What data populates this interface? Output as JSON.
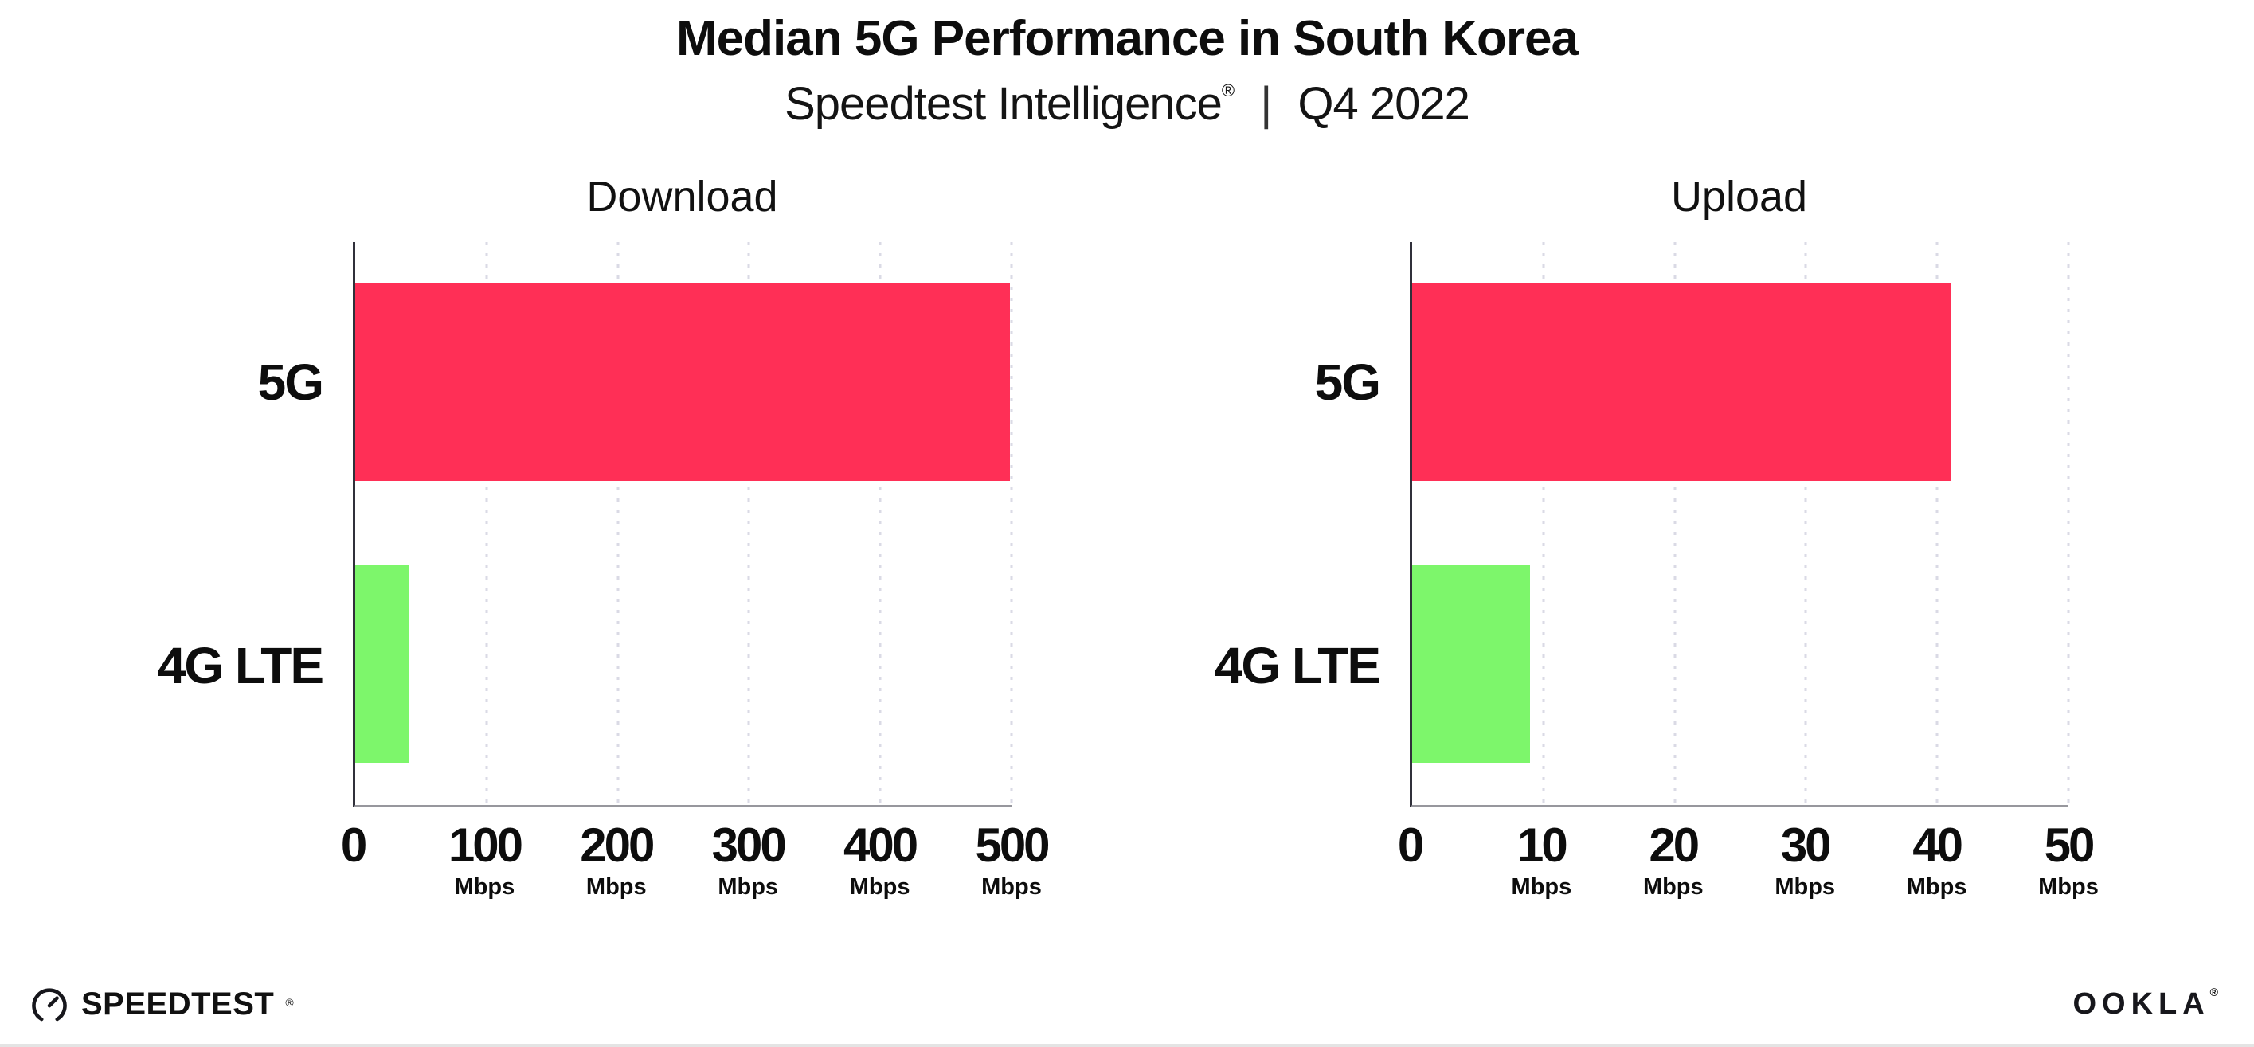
{
  "header": {
    "title": "Median 5G Performance in South Korea",
    "subtitle": {
      "brand": "Speedtest Intelligence",
      "reg": "®",
      "sep": "|",
      "period": "Q4 2022"
    }
  },
  "chart_data": [
    {
      "type": "bar",
      "orientation": "horizontal",
      "title": "Download",
      "categories": [
        "5G",
        "4G LTE"
      ],
      "values": [
        499,
        41
      ],
      "unit": "Mbps",
      "xlim": [
        0,
        500
      ],
      "xticks": [
        0,
        100,
        200,
        300,
        400,
        500
      ],
      "series_colors": [
        "#ff2f56",
        "#7df66b"
      ],
      "grid": "vertical-dotted",
      "legend": "none"
    },
    {
      "type": "bar",
      "orientation": "horizontal",
      "title": "Upload",
      "categories": [
        "5G",
        "4G LTE"
      ],
      "values": [
        41,
        9
      ],
      "unit": "Mbps",
      "xlim": [
        0,
        50
      ],
      "xticks": [
        0,
        10,
        20,
        30,
        40,
        50
      ],
      "series_colors": [
        "#ff2f56",
        "#7df66b"
      ],
      "grid": "vertical-dotted",
      "legend": "none"
    }
  ],
  "footer": {
    "speedtest": {
      "label": "SPEEDTEST",
      "reg": "®"
    },
    "ookla": {
      "label": "OOKLA",
      "reg": "®"
    }
  },
  "colors": {
    "bar_5g": "#ff2f56",
    "bar_4g_lte": "#7df66b",
    "gridline": "#dadae5",
    "axis_y": "#30303a",
    "axis_x": "#97979d",
    "text": "#0d0d0d"
  }
}
